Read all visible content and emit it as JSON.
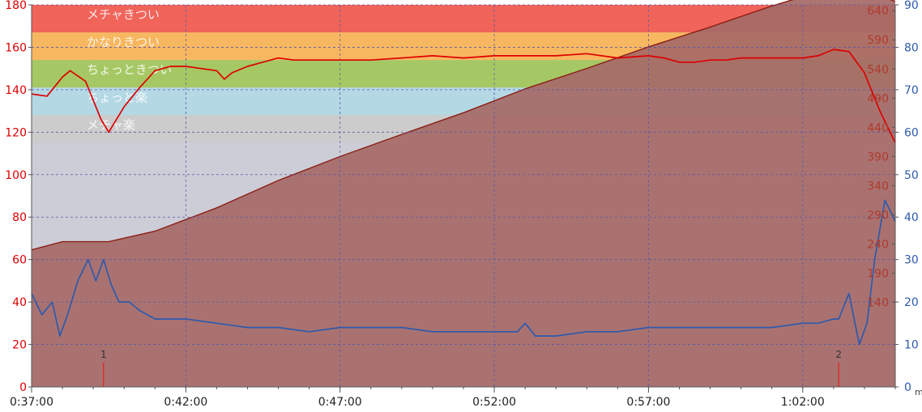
{
  "chart_data": {
    "type": "line",
    "x_ticks": [
      "0:37:00",
      "0:42:00",
      "0:47:00",
      "0:52:00",
      "0:57:00",
      "1:02:00"
    ],
    "x_start": "0:37:00",
    "x_end": "1:05:00",
    "y_left": {
      "min": 0,
      "max": 180,
      "ticks": [
        0,
        20,
        40,
        60,
        80,
        100,
        120,
        140,
        160,
        180
      ],
      "color": "#dd0000"
    },
    "y_right_blue": {
      "min": 0,
      "max": 90,
      "ticks": [
        0,
        10,
        20,
        30,
        40,
        50,
        60,
        70,
        80,
        90
      ],
      "color": "#2e5aac"
    },
    "y_inner_labels": {
      "ticks": [
        140,
        190,
        240,
        290,
        340,
        390,
        440,
        490,
        540,
        590,
        640
      ],
      "color": "#b03a2e"
    },
    "right_unit": "m",
    "zones": [
      {
        "label": "メチャきつい",
        "from": 167,
        "to": 180,
        "color": "#f0645a"
      },
      {
        "label": "かなりきつい",
        "from": 154,
        "to": 167,
        "color": "#f7b760"
      },
      {
        "label": "ちょっときつい",
        "from": 141,
        "to": 154,
        "color": "#a6c864"
      },
      {
        "label": "ちょっと楽",
        "from": 128,
        "to": 141,
        "color": "#b4d8e4"
      },
      {
        "label": "メチャ楽",
        "from": 115,
        "to": 128,
        "color": "#cccccc"
      }
    ],
    "laps": [
      {
        "label": "1",
        "x": "0:39:20"
      },
      {
        "label": "2",
        "x": "1:03:10"
      }
    ],
    "series": [
      {
        "color": "#dd0000",
        "axis": "left",
        "x": [
          "0:37:00",
          "0:37:30",
          "0:38:00",
          "0:38:15",
          "0:38:45",
          "0:39:15",
          "0:39:30",
          "0:40:00",
          "0:40:30",
          "0:41:00",
          "0:41:30",
          "0:42:00",
          "0:42:30",
          "0:43:00",
          "0:43:15",
          "0:43:30",
          "0:44:00",
          "0:44:30",
          "0:45:00",
          "0:45:30",
          "0:46:00",
          "0:47:00",
          "0:48:00",
          "0:49:00",
          "0:50:00",
          "0:51:00",
          "0:52:00",
          "0:53:00",
          "0:54:00",
          "0:55:00",
          "0:56:00",
          "0:57:00",
          "0:57:30",
          "0:58:00",
          "0:58:30",
          "0:59:00",
          "0:59:30",
          "1:00:00",
          "1:01:00",
          "1:02:00",
          "1:02:30",
          "1:03:00",
          "1:03:30",
          "1:04:00",
          "1:04:30",
          "1:05:00"
        ],
        "values": [
          138,
          137,
          146,
          149,
          144,
          126,
          120,
          132,
          141,
          149,
          151,
          151,
          150,
          149,
          145,
          148,
          151,
          153,
          155,
          154,
          154,
          154,
          154,
          155,
          156,
          155,
          156,
          156,
          156,
          157,
          155,
          156,
          155,
          153,
          153,
          154,
          154,
          155,
          155,
          155,
          156,
          159,
          158,
          148,
          130,
          115
        ]
      },
      {
        "color": "#2e5aac",
        "axis": "right",
        "x": [
          "0:37:00",
          "0:37:20",
          "0:37:40",
          "0:37:55",
          "0:38:10",
          "0:38:30",
          "0:38:50",
          "0:39:05",
          "0:39:20",
          "0:39:35",
          "0:39:50",
          "0:40:10",
          "0:40:30",
          "0:41:00",
          "0:41:30",
          "0:42:00",
          "0:43:00",
          "0:44:00",
          "0:45:00",
          "0:46:00",
          "0:47:00",
          "0:48:00",
          "0:49:00",
          "0:50:00",
          "0:51:00",
          "0:52:00",
          "0:52:45",
          "0:53:00",
          "0:53:20",
          "0:54:00",
          "0:55:00",
          "0:56:00",
          "0:57:00",
          "0:58:00",
          "0:59:00",
          "1:00:00",
          "1:01:00",
          "1:02:00",
          "1:02:30",
          "1:03:00",
          "1:03:10",
          "1:03:30",
          "1:03:50",
          "1:04:05",
          "1:04:20",
          "1:04:40",
          "1:05:00"
        ],
        "values": [
          22,
          17,
          20,
          12,
          17,
          25,
          30,
          25,
          30,
          24,
          20,
          20,
          18,
          16,
          16,
          16,
          15,
          14,
          14,
          13,
          14,
          14,
          14,
          13,
          13,
          13,
          13,
          15,
          12,
          12,
          13,
          13,
          14,
          14,
          14,
          14,
          14,
          15,
          15,
          16,
          16,
          22,
          10,
          15,
          30,
          44,
          39
        ]
      },
      {
        "color": "#8a1e14",
        "axis": "inner",
        "fill": "#a66a67",
        "x": [
          "0:37:00",
          "0:38:00",
          "0:39:30",
          "0:41:00",
          "0:43:00",
          "0:45:00",
          "0:47:00",
          "0:49:00",
          "0:51:00",
          "0:53:00",
          "0:55:00",
          "0:57:00",
          "0:59:00",
          "1:01:00",
          "1:02:00",
          "1:03:00",
          "1:03:30",
          "1:04:00",
          "1:05:00"
        ],
        "values": [
          230,
          244,
          244,
          262,
          302,
          349,
          390,
          428,
          465,
          506,
          541,
          578,
          612,
          648,
          664,
          680,
          681,
          676,
          656
        ]
      }
    ]
  }
}
